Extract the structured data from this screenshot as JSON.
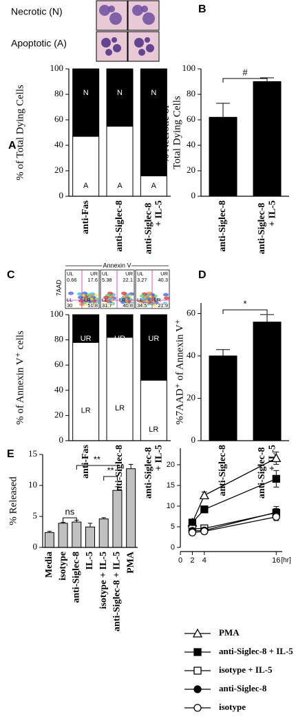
{
  "chart_data": [
    {
      "type": "stacked_bar",
      "panel": "A",
      "images": [
        "Necrotic (N)",
        "Apoptotic (A)"
      ],
      "ylabel": "% of Total Dying Cells",
      "categories": [
        "anti-Fas",
        "anti-Siglec-8",
        "anti-Siglec-8 + IL-5"
      ],
      "series": [
        {
          "name": "A",
          "color": "#ffffff",
          "values": [
            47,
            55,
            16
          ]
        },
        {
          "name": "N",
          "color": "#000000",
          "values": [
            53,
            45,
            84
          ]
        }
      ],
      "ylim": [
        0,
        100
      ],
      "yticks": [
        0,
        20,
        40,
        60,
        80,
        100
      ]
    },
    {
      "type": "bar",
      "panel": "B",
      "ylabel": "% Necrotic of Total Dying Cells",
      "categories": [
        "anti-Siglec-8",
        "anti-Siglec-8 + IL-5"
      ],
      "values": [
        62,
        90
      ],
      "errors": [
        11,
        3
      ],
      "color": "#000000",
      "ylim": [
        0,
        100
      ],
      "yticks": [
        0,
        20,
        40,
        60,
        80,
        100
      ],
      "annotations": [
        "#"
      ]
    },
    {
      "type": "stacked_bar",
      "panel": "C",
      "flow": {
        "x_label": "Annexin V",
        "y_label": "7AAD",
        "quadrants": [
          "UL",
          "UR",
          "LL",
          "LR"
        ],
        "plots": [
          [
            0.66,
            17.6,
            30,
            51.8
          ],
          [
            5.38,
            22.1,
            31.7,
            40.8
          ],
          [
            3.27,
            40.3,
            34.5,
            21.9
          ]
        ]
      },
      "ylabel": "% of Annexin V⁺ cells",
      "categories": [
        "anti-Fas",
        "anti-Siglec-8",
        "anti-Siglec-8 + IL-5"
      ],
      "series": [
        {
          "name": "LR",
          "color": "#ffffff",
          "values": [
            78,
            82,
            48
          ]
        },
        {
          "name": "UR",
          "color": "#000000",
          "values": [
            22,
            18,
            52
          ]
        }
      ],
      "ylim": [
        0,
        100
      ],
      "yticks": [
        0,
        20,
        40,
        60,
        80,
        100
      ]
    },
    {
      "type": "bar",
      "panel": "D",
      "ylabel": "%7AAD⁺ of Annexin V⁺",
      "categories": [
        "anti-Siglec-8",
        "anti-Siglec-8 + IL-5"
      ],
      "values": [
        40,
        56
      ],
      "errors": [
        3,
        3.5
      ],
      "color": "#000000",
      "ylim": [
        0,
        65
      ],
      "yticks": [
        0,
        20,
        40,
        60
      ],
      "annotations": [
        "*"
      ]
    },
    {
      "type": "bar",
      "panel": "E",
      "ylabel": "% Released",
      "categories": [
        "Media",
        "isotype",
        "anti-Siglec-8",
        "IL-5",
        "isotype + IL-5",
        "anti-Siglec-8 + IL-5",
        "PMA"
      ],
      "values": [
        2.4,
        3.9,
        4.1,
        3.3,
        4.6,
        9.2,
        12.7
      ],
      "errors": [
        0.2,
        0.15,
        0.3,
        0.6,
        0.2,
        0.6,
        0.7
      ],
      "color": "#c0c0c0",
      "ylim": [
        0,
        15
      ],
      "yticks": [
        0,
        5,
        10,
        15
      ],
      "annotations": [
        "ns",
        "**",
        "**"
      ]
    },
    {
      "type": "line",
      "x": [
        2,
        4,
        16
      ],
      "x_unit": "[hr]",
      "xlim": [
        0,
        17
      ],
      "xticks": [
        0,
        2,
        4,
        16
      ],
      "ylim": [
        0,
        24
      ],
      "yticks": [
        0,
        5,
        10,
        15,
        20
      ],
      "series": [
        {
          "name": "PMA",
          "marker": "triangle-open",
          "color": "#000000",
          "values": [
            6,
            12.6,
            21.6
          ],
          "errors": [
            0.6,
            0.8,
            1.5
          ]
        },
        {
          "name": "anti-Siglec-8 + IL-5",
          "marker": "square-filled",
          "color": "#000000",
          "values": [
            6,
            9.2,
            16.6
          ],
          "errors": [
            0.8,
            0.5,
            2
          ]
        },
        {
          "name": "isotype + IL-5",
          "marker": "square-open",
          "color": "#000000",
          "values": [
            4.5,
            4.6,
            8.4
          ],
          "errors": [
            0.4,
            0.3,
            1
          ]
        },
        {
          "name": "anti-Siglec-8",
          "marker": "circle-filled",
          "color": "#000000",
          "values": [
            4,
            4.1,
            8.5
          ],
          "errors": [
            0.3,
            0.3,
            1.4
          ]
        },
        {
          "name": "isotype",
          "marker": "circle-open",
          "color": "#000000",
          "values": [
            3.6,
            3.9,
            7.4
          ],
          "errors": [
            0.3,
            0.2,
            0.9
          ]
        }
      ]
    }
  ]
}
